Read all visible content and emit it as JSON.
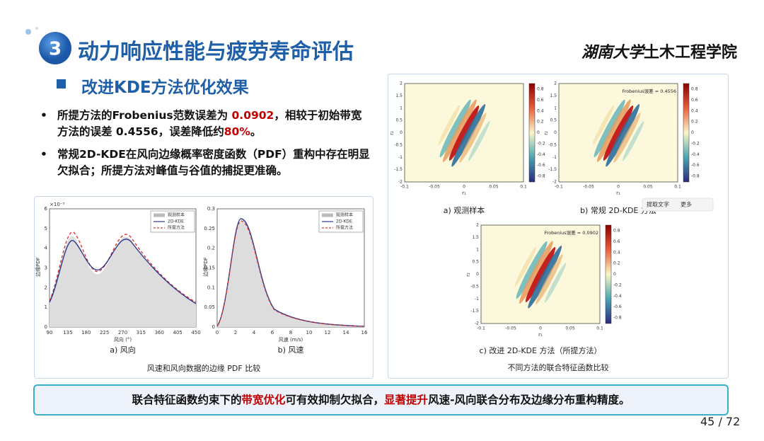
{
  "header": {
    "number": "3",
    "title": "动力响应性能与疲劳寿命评估",
    "logo_script": "湖南大学",
    "logo_text": "土木工程学院"
  },
  "section": "改进KDE方法优化效果",
  "bullets": [
    [
      "所提方法的Frobenius范数误差为 ",
      "0.0902",
      "，相较于初始带宽方法的误差 0.4556，误差降低约",
      "80%",
      "。"
    ],
    [
      "常规2D-KDE在风向边缘概率密度函数（PDF）重构中存在明显欠拟合；所提方法对峰值与谷值的捕捉更准确。"
    ]
  ],
  "left_figure": {
    "panel_a": {
      "exponent": "×10⁻³",
      "ylabel": "边缘PDF",
      "xlabel": "风向 (°)",
      "yticks": [
        0,
        1,
        2,
        3,
        4,
        5,
        6
      ],
      "xticks": [
        90,
        135,
        180,
        225,
        270,
        315,
        360,
        405,
        450
      ],
      "legend": [
        "观测样本",
        "2D-KDE",
        "所提方法"
      ],
      "caption": "a) 风向"
    },
    "panel_b": {
      "ylabel": "边缘PDF",
      "xlabel": "风速 (m/s)",
      "yticks": [
        0,
        0.05,
        0.1,
        0.15,
        0.2,
        0.25,
        0.3
      ],
      "xticks": [
        0,
        2,
        4,
        6,
        8,
        10,
        12,
        14,
        16
      ],
      "legend": [
        "观测样本",
        "2D-KDE",
        "所提方法"
      ],
      "caption": "b) 风速"
    },
    "caption": "风速和风向数据的边缘 PDF 比较"
  },
  "right_figure": {
    "ylabel": "r₂",
    "xlabel": "r₁",
    "yticks": [
      2,
      1.5,
      1,
      0.5,
      0,
      -0.5,
      -1,
      -1.5,
      -2
    ],
    "xticks": [
      -0.1,
      -0.05,
      0,
      0.05,
      0.1
    ],
    "cbticks": [
      0.8,
      0.6,
      0.4,
      0.2,
      0,
      -0.2,
      -0.4,
      -0.6,
      -0.8
    ],
    "panels": [
      {
        "caption": "a) 观测样本"
      },
      {
        "caption": "b) 常规 2D-KDE 方法",
        "annotation": "Frobenius误差 = 0.4556"
      },
      {
        "caption": "c) 改进 2D-KDE 方法（所提方法）",
        "annotation": "Frobenius误差 = 0.0902"
      }
    ],
    "toolbar": [
      "提取文字",
      "更多"
    ],
    "caption": "不同方法的联合特征函数比较"
  },
  "conclusion": [
    "联合特征函数约束下的",
    "带宽优化",
    "可有效抑制欠拟合，",
    "显著提升",
    "风速-风向联合分布及边缘分布重构精度。"
  ],
  "page": "45 / 72"
}
